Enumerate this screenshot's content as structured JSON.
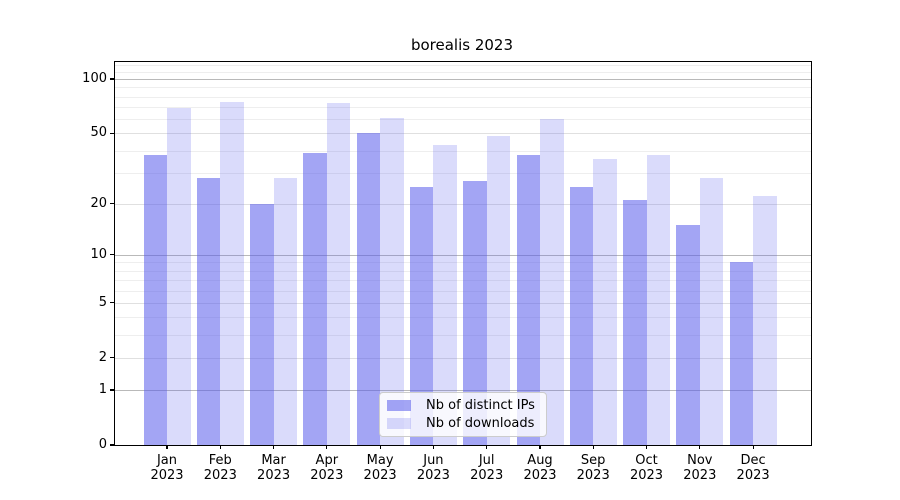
{
  "chart_data": {
    "type": "bar",
    "title": "borealis 2023",
    "categories": [
      "Jan",
      "Feb",
      "Mar",
      "Apr",
      "May",
      "Jun",
      "Jul",
      "Aug",
      "Sep",
      "Oct",
      "Nov",
      "Dec"
    ],
    "x_tick_second_line": "2023",
    "series": [
      {
        "name": "Nb of distinct IPs",
        "values": [
          38,
          28,
          20,
          39,
          50,
          25,
          27,
          38,
          25,
          21,
          15,
          9
        ],
        "color": "rgba(88,91,235,0.55)",
        "base_hex": "#585BEB"
      },
      {
        "name": "Nb of downloads",
        "values": [
          69,
          75,
          28,
          74,
          61,
          43,
          48,
          60,
          36,
          38,
          28,
          22
        ],
        "color": "rgba(88,91,235,0.22)",
        "base_hex": "#585BEB"
      }
    ],
    "yscale": "log1p",
    "ylim": [
      0,
      125
    ],
    "ytick_labels": [
      "0",
      "1",
      "2",
      "5",
      "10",
      "20",
      "50",
      "100"
    ],
    "ytick_values": [
      0,
      1,
      2,
      5,
      10,
      20,
      50,
      100
    ],
    "ytick_decade_values": [
      1,
      10,
      100
    ],
    "ytick_minor_values": [
      3,
      4,
      6,
      7,
      8,
      9,
      30,
      40,
      60,
      70,
      80,
      90,
      110,
      120
    ],
    "grid": true,
    "legend": {
      "position": "lower center",
      "entries": [
        "Nb of distinct IPs",
        "Nb of downloads"
      ]
    },
    "colors": {
      "bar_strong": "rgba(88,91,235,0.55)",
      "bar_light": "rgba(88,91,235,0.22)",
      "grid_decade": "#b9b9b9",
      "grid_sub": "#e0e0e0",
      "grid_minor": "#eeeeee",
      "spine": "#000000"
    }
  }
}
